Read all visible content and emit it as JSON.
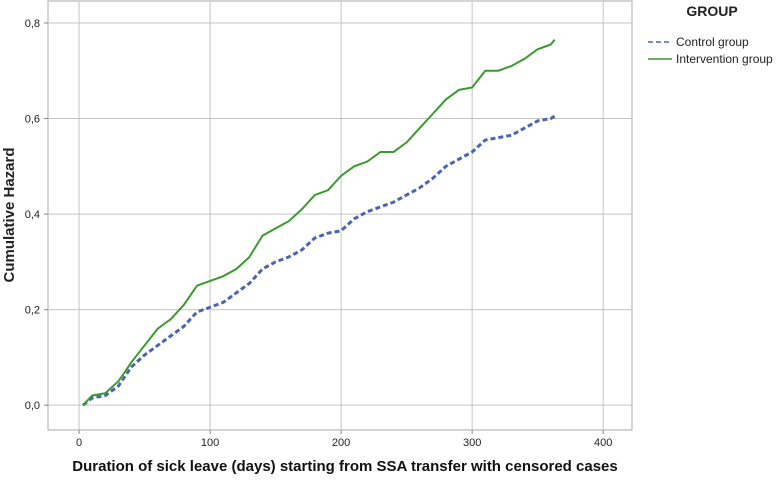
{
  "chart_data": {
    "type": "line",
    "step": true,
    "x_label": "Duration of sick leave (days) starting from SSA transfer with censored cases",
    "y_label": "Cumulative Hazard",
    "legend_title": "GROUP",
    "legend": "right",
    "grid": true,
    "xlim": [
      -23.7,
      422
    ],
    "ylim": [
      -0.052,
      0.846
    ],
    "xticks": [
      0,
      100,
      200,
      300,
      400
    ],
    "yticks": [
      {
        "value": 0,
        "label": "0,0"
      },
      {
        "value": 0.2,
        "label": "0,2"
      },
      {
        "value": 0.4,
        "label": "0,4"
      },
      {
        "value": 0.6,
        "label": "0,6"
      },
      {
        "value": 0.8,
        "label": "0,8"
      }
    ],
    "x": [
      3,
      10,
      20,
      30,
      40,
      50,
      60,
      70,
      80,
      90,
      100,
      110,
      120,
      130,
      140,
      150,
      160,
      170,
      180,
      190,
      200,
      210,
      220,
      230,
      240,
      250,
      260,
      270,
      280,
      290,
      300,
      310,
      320,
      330,
      340,
      350,
      360,
      363
    ],
    "series": [
      {
        "name": "Control group",
        "color": "#4a64b0",
        "dash": true,
        "values": [
          0,
          0.015,
          0.02,
          0.04,
          0.08,
          0.105,
          0.125,
          0.145,
          0.165,
          0.195,
          0.205,
          0.215,
          0.235,
          0.255,
          0.285,
          0.3,
          0.31,
          0.325,
          0.35,
          0.36,
          0.365,
          0.39,
          0.405,
          0.415,
          0.425,
          0.44,
          0.455,
          0.475,
          0.5,
          0.515,
          0.53,
          0.555,
          0.56,
          0.565,
          0.58,
          0.595,
          0.6,
          0.605
        ]
      },
      {
        "name": "Intervention group",
        "color": "#3a9a2e",
        "dash": false,
        "values": [
          0,
          0.02,
          0.025,
          0.05,
          0.09,
          0.125,
          0.16,
          0.18,
          0.21,
          0.25,
          0.26,
          0.27,
          0.285,
          0.31,
          0.355,
          0.37,
          0.385,
          0.41,
          0.44,
          0.45,
          0.48,
          0.5,
          0.51,
          0.53,
          0.53,
          0.55,
          0.58,
          0.61,
          0.64,
          0.66,
          0.665,
          0.7,
          0.7,
          0.71,
          0.725,
          0.745,
          0.755,
          0.765
        ]
      }
    ]
  }
}
